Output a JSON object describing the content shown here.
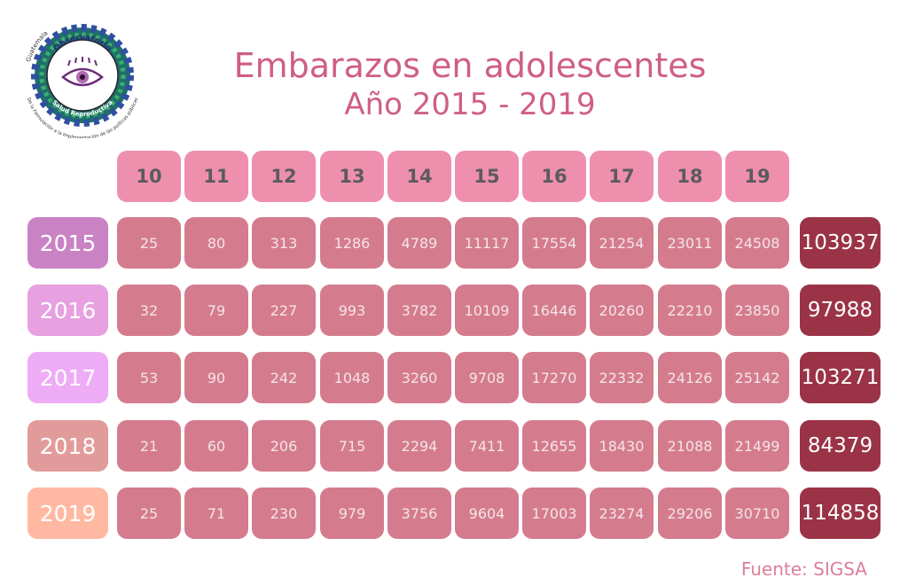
{
  "logo": {
    "top_text": "Guatemala",
    "center_text_1": "Observatorio",
    "center_text_2": "Salud Reproductiva",
    "ring_text": "De la Formulación a la Implementación de las políticas públicas",
    "icon": "eye-logo-icon"
  },
  "title": {
    "line1": "Embarazos en adolescentes",
    "line2": "Año 2015 - 2019"
  },
  "source": "Fuente: SIGSA",
  "colors": {
    "title": "#cf5f82",
    "age_header": "#ef8fae",
    "value_cell": "#d47c8e",
    "total_cell": "#9b3347",
    "year_2015": "#c983c4",
    "year_2016": "#e7a0e0",
    "year_2017": "#eeacf6",
    "year_2018": "#e29b9b",
    "year_2019": "#ffb9a2"
  },
  "chart_data": {
    "type": "table",
    "title": "Embarazos en adolescentes",
    "subtitle": "Año 2015 - 2019",
    "columns": [
      "10",
      "11",
      "12",
      "13",
      "14",
      "15",
      "16",
      "17",
      "18",
      "19"
    ],
    "rows": [
      {
        "year": "2015",
        "values": [
          25,
          80,
          313,
          1286,
          4789,
          11117,
          17554,
          21254,
          23011,
          24508
        ],
        "total": 103937
      },
      {
        "year": "2016",
        "values": [
          32,
          79,
          227,
          993,
          3782,
          10109,
          16446,
          20260,
          22210,
          23850
        ],
        "total": 97988
      },
      {
        "year": "2017",
        "values": [
          53,
          90,
          242,
          1048,
          3260,
          9708,
          17270,
          22332,
          24126,
          25142
        ],
        "total": 103271
      },
      {
        "year": "2018",
        "values": [
          21,
          60,
          206,
          715,
          2294,
          7411,
          12655,
          18430,
          21088,
          21499
        ],
        "total": 84379
      },
      {
        "year": "2019",
        "values": [
          25,
          71,
          230,
          979,
          3756,
          9604,
          17003,
          23274,
          29206,
          30710
        ],
        "total": 114858
      }
    ]
  }
}
